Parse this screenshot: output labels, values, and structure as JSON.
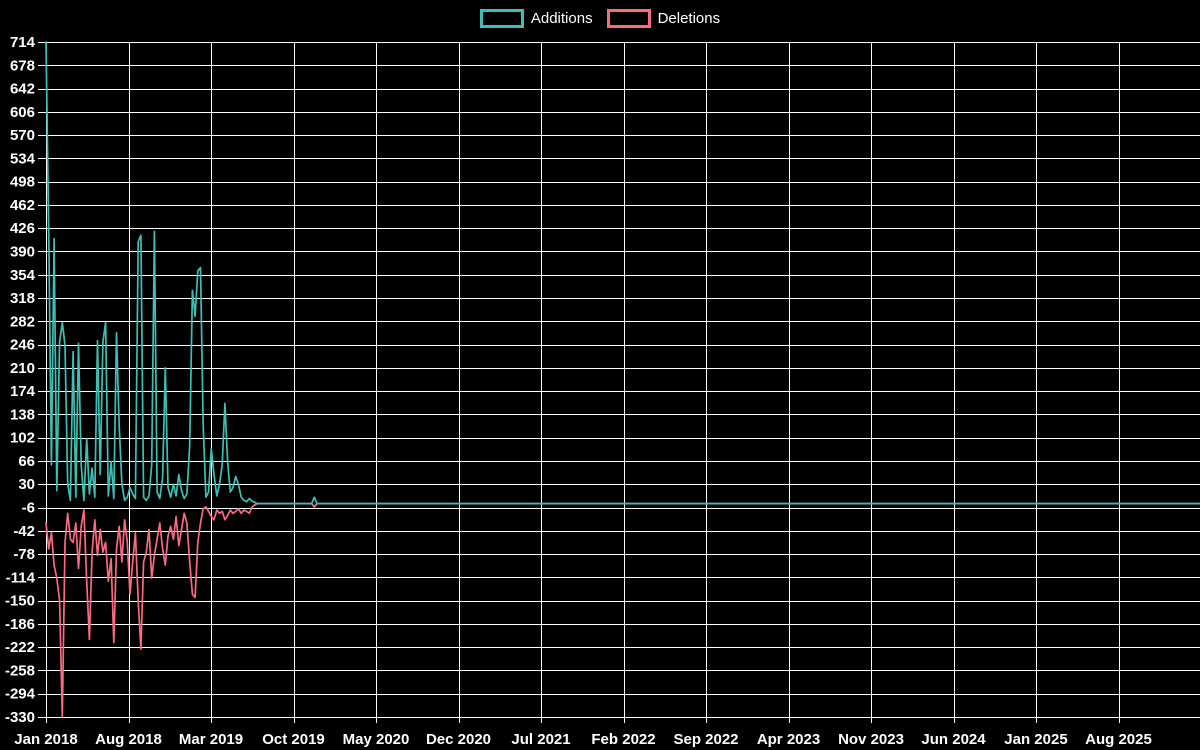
{
  "page": {
    "background": "#000000",
    "grid_color": "#ffffff",
    "text_color": "#ffffff"
  },
  "chart_data": {
    "type": "line",
    "title": "",
    "xlabel": "",
    "ylabel": "",
    "x_start": "Jan 2018",
    "x_interval": "weekly",
    "x_tick_labels": [
      "Jan 2018",
      "Aug 2018",
      "Mar 2019",
      "Oct 2019",
      "May 2020",
      "Dec 2020",
      "Jul 2021",
      "Feb 2022",
      "Sep 2022",
      "Apr 2023",
      "Nov 2023",
      "Jun 2024",
      "Jan 2025",
      "Aug 2025"
    ],
    "x_tick_interval_months": 7,
    "yticks": [
      714,
      678,
      642,
      606,
      570,
      534,
      498,
      462,
      426,
      390,
      354,
      318,
      282,
      246,
      210,
      174,
      138,
      102,
      66,
      30,
      -6,
      -42,
      -78,
      -114,
      -150,
      -186,
      -222,
      -258,
      -294,
      -330
    ],
    "ylim": [
      -330,
      714
    ],
    "grid": true,
    "legend_position": "top-center",
    "series": [
      {
        "name": "Additions",
        "color": "#3fbfb4",
        "values": [
          714,
          423,
          60,
          410,
          20,
          250,
          280,
          245,
          30,
          5,
          235,
          10,
          248,
          60,
          5,
          100,
          15,
          55,
          10,
          252,
          45,
          250,
          280,
          12,
          65,
          8,
          264,
          120,
          30,
          5,
          10,
          25,
          15,
          8,
          405,
          415,
          10,
          5,
          12,
          60,
          421,
          18,
          8,
          40,
          210,
          25,
          10,
          30,
          12,
          45,
          20,
          8,
          15,
          90,
          330,
          290,
          360,
          365,
          120,
          10,
          18,
          85,
          45,
          12,
          30,
          60,
          155,
          65,
          18,
          25,
          42,
          30,
          10,
          5,
          3,
          8,
          4,
          2,
          0,
          0,
          0,
          0,
          0,
          0,
          0,
          0,
          0,
          0,
          0,
          0,
          0,
          0,
          0,
          0,
          0,
          0,
          0,
          0,
          0,
          10,
          0
        ]
      },
      {
        "name": "Deletions",
        "color": "#f96b81",
        "values": [
          -30,
          -70,
          -45,
          -95,
          -115,
          -150,
          -330,
          -60,
          -15,
          -55,
          -60,
          -30,
          -100,
          -35,
          -10,
          -120,
          -210,
          -75,
          -25,
          -80,
          -40,
          -75,
          -60,
          -120,
          -85,
          -215,
          -70,
          -35,
          -90,
          -25,
          -60,
          -140,
          -90,
          -45,
          -150,
          -225,
          -90,
          -75,
          -40,
          -115,
          -80,
          -55,
          -30,
          -70,
          -95,
          -50,
          -35,
          -55,
          -20,
          -65,
          -40,
          -15,
          -30,
          -90,
          -140,
          -145,
          -60,
          -30,
          -8,
          -5,
          -12,
          -20,
          -25,
          -10,
          -15,
          -12,
          -25,
          -18,
          -10,
          -15,
          -12,
          -8,
          -15,
          -10,
          -12,
          -15,
          -5,
          -2,
          0,
          0,
          0,
          0,
          0,
          0,
          0,
          0,
          0,
          0,
          0,
          0,
          0,
          0,
          0,
          0,
          0,
          0,
          0,
          0,
          0,
          -5,
          0
        ]
      }
    ]
  }
}
